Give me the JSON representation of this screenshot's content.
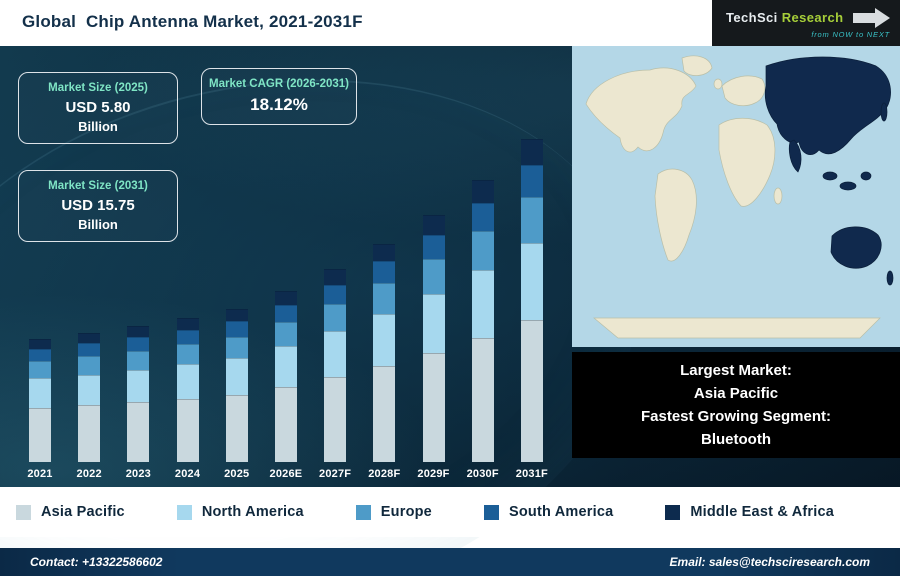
{
  "header": {
    "title": "Global  Chip Antenna Market, 2021-2031F",
    "logo": {
      "brand_tech": "TechSci",
      "brand_research": "Research",
      "tagline": "from NOW to NEXT"
    }
  },
  "stats": [
    {
      "label": "Market Size (2025)",
      "value": "USD 5.80",
      "unit": "Billion"
    },
    {
      "label": "Market CAGR (2026-2031)",
      "value": "18.12%",
      "unit": ""
    },
    {
      "label": "Market Size (2031)",
      "value": "USD 15.75",
      "unit": "Billion"
    }
  ],
  "chart_data": {
    "type": "bar",
    "stacked": true,
    "title": "Global Chip Antenna Market, 2021-2031F",
    "unit": "USD Billion",
    "categories": [
      "2021",
      "2022",
      "2023",
      "2024",
      "2025",
      "2026E",
      "2027F",
      "2028F",
      "2029F",
      "2030F",
      "2031F"
    ],
    "series": [
      {
        "name": "Asia Pacific",
        "color": "#c9d8de",
        "values": [
          1.76,
          1.91,
          2.09,
          2.29,
          2.55,
          3.01,
          3.56,
          4.21,
          4.97,
          5.87,
          6.93
        ]
      },
      {
        "name": "North America",
        "color": "#a6d8ee",
        "values": [
          0.96,
          1.04,
          1.14,
          1.25,
          1.39,
          1.64,
          1.94,
          2.29,
          2.71,
          3.2,
          3.78
        ]
      },
      {
        "name": "Europe",
        "color": "#4e9bc8",
        "values": [
          0.56,
          0.61,
          0.67,
          0.73,
          0.81,
          0.96,
          1.13,
          1.34,
          1.58,
          1.87,
          2.21
        ]
      },
      {
        "name": "South America",
        "color": "#1b5e97",
        "values": [
          0.4,
          0.44,
          0.48,
          0.52,
          0.58,
          0.69,
          0.81,
          0.96,
          1.13,
          1.33,
          1.58
        ]
      },
      {
        "name": "Middle East & Africa",
        "color": "#0d2b4e",
        "values": [
          0.32,
          0.35,
          0.38,
          0.42,
          0.46,
          0.55,
          0.65,
          0.76,
          0.9,
          1.07,
          1.26
        ]
      }
    ],
    "totals": [
      4.0,
      4.35,
      4.76,
      5.21,
      5.79,
      6.85,
      8.09,
      9.56,
      11.29,
      13.34,
      15.76
    ],
    "annotations": {
      "market_size_2025": "USD 5.80 Billion",
      "market_size_2031": "USD 15.75 Billion",
      "cagr_2026_2031": "18.12%"
    },
    "legend_position": "bottom",
    "grid": false
  },
  "map_caption": {
    "lines": [
      "Largest Market:",
      "Asia Pacific",
      "Fastest Growing Segment:",
      "Bluetooth"
    ]
  },
  "legend": [
    {
      "label": "Asia Pacific",
      "color": "#c9d8de"
    },
    {
      "label": "North America",
      "color": "#a6d8ee"
    },
    {
      "label": "Europe",
      "color": "#4e9bc8"
    },
    {
      "label": "South America",
      "color": "#1b5e97"
    },
    {
      "label": "Middle East & Africa",
      "color": "#0d2b4e"
    }
  ],
  "footer": {
    "contact": "Contact: +13322586602",
    "email": "Email: sales@techsciresearch.com"
  }
}
